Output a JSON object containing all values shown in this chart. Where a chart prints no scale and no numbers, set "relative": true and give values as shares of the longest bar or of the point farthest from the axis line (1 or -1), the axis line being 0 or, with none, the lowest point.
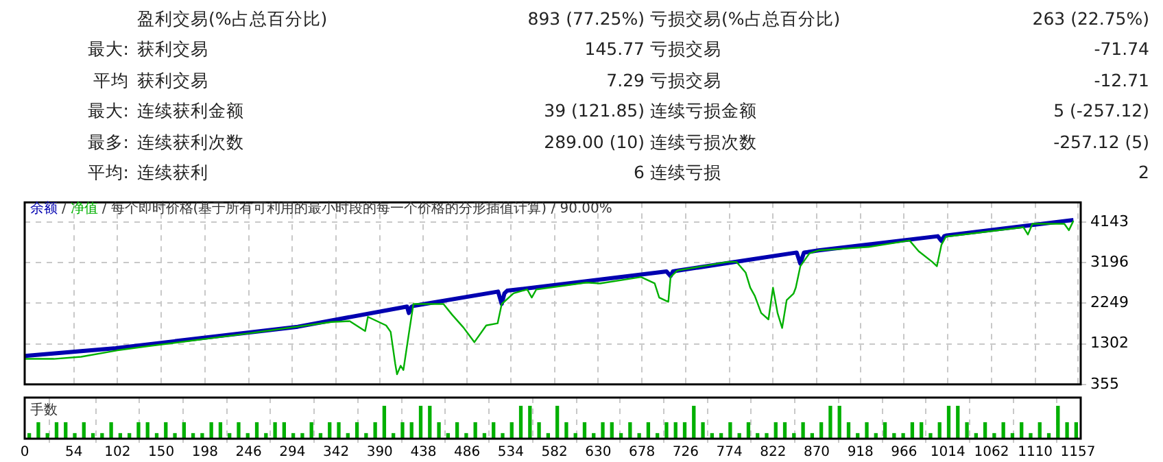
{
  "chart_data": [
    {
      "type": "other",
      "annotations": [
        "盈利交易(%占总百分比)",
        "893 (77.25%)",
        "亏损交易(%占总百分比)",
        "263 (22.75%)",
        "最大:",
        "获利交易",
        "145.77",
        "亏损交易",
        "-71.74",
        "平均",
        "获利交易",
        "7.29",
        "亏损交易",
        "-12.71",
        "最大:",
        "连续获利金额",
        "39 (121.85)",
        "连续亏损金额",
        "5 (-257.12)",
        "最多:",
        "连续获利次数",
        "289.00 (10)",
        "连续亏损次数",
        "-257.12 (5)",
        "平均:",
        "连续获利",
        "6",
        "连续亏损",
        "2"
      ]
    },
    {
      "type": "line",
      "annotations": [
        "/",
        "/"
      ],
      "title": "每个即时价格(基于所有可利用的最小时段的每一个价格的分形插值计算) / 90.00%",
      "xlim": [
        0,
        1160
      ],
      "xticks": [
        0,
        54,
        102,
        150,
        198,
        246,
        294,
        342,
        390,
        438,
        486,
        534,
        582,
        630,
        678,
        726,
        774,
        822,
        870,
        918,
        966,
        1014,
        1062,
        1110,
        1157
      ],
      "ylim": [
        355,
        4600
      ],
      "yticks": [
        355,
        1302,
        2249,
        3196,
        4143
      ],
      "tick_labels": "y",
      "grid": true,
      "legend": false,
      "marker": "none",
      "line_style": "solid",
      "series": [
        {
          "name": "净值",
          "color": "#00b000",
          "x": [
            0,
            32,
            62,
            102,
            137,
            237,
            337,
            357,
            374,
            377,
            387,
            397,
            402,
            407,
            409,
            413,
            416,
            422,
            427,
            437,
            460,
            469.5,
            482,
            487,
            494,
            507,
            519.5,
            524,
            537,
            552,
            557,
            562,
            617,
            632,
            677,
            692,
            697,
            707,
            709.5,
            717,
            772,
            782,
            792,
            797,
            802,
            809,
            817,
            822,
            827,
            832,
            837,
            844.5,
            847,
            852,
            862,
            872,
            927,
            972,
            982,
            997,
            1002,
            1007,
            1012,
            1097,
            1102,
            1107,
            1142,
            1147,
            1152
          ],
          "values": [
            950,
            950,
            1000,
            1150,
            1250,
            1520,
            1810,
            1830,
            1600,
            1930,
            1830,
            1730,
            1580,
            840,
            590,
            790,
            690,
            1540,
            2230,
            2230,
            2230,
            1980,
            1680,
            1540,
            1340,
            1730,
            1780,
            2230,
            2480,
            2570,
            2380,
            2570,
            2730,
            2710,
            2860,
            2710,
            2380,
            2280,
            2860,
            3010,
            3210,
            3210,
            2960,
            2610,
            2420,
            2020,
            1870,
            2610,
            2020,
            1670,
            2320,
            2470,
            2610,
            3110,
            3410,
            3480,
            3560,
            3710,
            3460,
            3210,
            3110,
            3610,
            3800,
            4020,
            3850,
            4100,
            4100,
            3950,
            4170
          ]
        },
        {
          "name": "余额",
          "color": "#0000b0",
          "x": [
            0,
            100,
            200,
            300,
            420,
            422,
            425,
            428,
            520,
            524,
            527,
            530,
            617,
            705,
            709.5,
            712,
            715,
            848,
            852,
            856,
            860,
            872,
            1003,
            1007,
            1010,
            1013,
            1152
          ],
          "values": [
            1020,
            1200,
            1450,
            1700,
            2170,
            2020,
            2170,
            2190,
            2520,
            2230,
            2480,
            2540,
            2760,
            2990,
            2880,
            2990,
            3000,
            3430,
            3170,
            3430,
            3440,
            3480,
            3810,
            3700,
            3810,
            3830,
            4190
          ]
        }
      ]
    },
    {
      "type": "bar",
      "title": "手数",
      "relative": true,
      "tick_labels": "x",
      "grid": "x",
      "color": "#00b000",
      "xlim": [
        0,
        1160
      ],
      "xticks": [
        0,
        54,
        102,
        150,
        198,
        246,
        294,
        342,
        390,
        438,
        486,
        534,
        582,
        630,
        678,
        726,
        774,
        822,
        870,
        918,
        966,
        1014,
        1062,
        1110,
        1157
      ],
      "x": [
        5,
        15,
        25,
        35,
        45,
        55,
        65,
        75,
        85,
        95,
        105,
        115,
        125,
        135,
        145,
        155,
        165,
        175,
        185,
        195,
        205,
        215,
        225,
        235,
        245,
        255,
        265,
        275,
        285,
        295,
        305,
        315,
        325,
        335,
        345,
        355,
        365,
        375,
        385,
        395,
        405,
        415,
        425,
        435,
        445,
        455,
        465,
        475,
        485,
        495,
        505,
        515,
        525,
        535,
        545,
        555,
        565,
        575,
        585,
        595,
        605,
        615,
        625,
        635,
        645,
        655,
        665,
        675,
        685,
        695,
        705,
        715,
        725,
        735,
        745,
        755,
        765,
        775,
        785,
        795,
        805,
        815,
        825,
        835,
        845,
        855,
        865,
        875,
        885,
        895,
        905,
        915,
        925,
        935,
        945,
        955,
        965,
        975,
        985,
        995,
        1005,
        1015,
        1025,
        1035,
        1045,
        1055,
        1065,
        1075,
        1085,
        1095,
        1105,
        1115,
        1125,
        1135,
        1145,
        1155
      ],
      "values": [
        0.17,
        0.5,
        0.17,
        0.5,
        0.5,
        0.17,
        0.5,
        0.17,
        0.17,
        0.5,
        0.17,
        0.17,
        0.5,
        0.5,
        0.17,
        0.5,
        0.17,
        0.5,
        0.17,
        0.17,
        0.5,
        0.5,
        0.17,
        0.5,
        0.17,
        0.5,
        0.17,
        0.5,
        0.5,
        0.17,
        0.17,
        0.5,
        0.17,
        0.5,
        0.5,
        0.17,
        0.5,
        0.17,
        0.5,
        1,
        0.17,
        0.5,
        0.5,
        1,
        1,
        0.5,
        0.17,
        0.5,
        0.17,
        0.5,
        0.17,
        0.5,
        0.17,
        0.5,
        1,
        1,
        0.5,
        0.17,
        1,
        0.5,
        0.17,
        0.5,
        0.17,
        0.5,
        0.5,
        0.17,
        0.5,
        0.17,
        0.5,
        0.17,
        0.5,
        0.5,
        0.5,
        1,
        0.5,
        0.17,
        0.17,
        0.5,
        0.17,
        0.5,
        0.17,
        0.17,
        0.5,
        0.5,
        0.17,
        0.5,
        0.17,
        0.5,
        1,
        1,
        0.5,
        0.17,
        0.5,
        0.17,
        0.5,
        0.17,
        0.17,
        0.5,
        0.5,
        0.17,
        0.5,
        1,
        1,
        0.5,
        0.17,
        0.5,
        0.17,
        0.5,
        0.17,
        0.5,
        0.17,
        0.5,
        0.17,
        1,
        0.5,
        0.5
      ]
    }
  ]
}
